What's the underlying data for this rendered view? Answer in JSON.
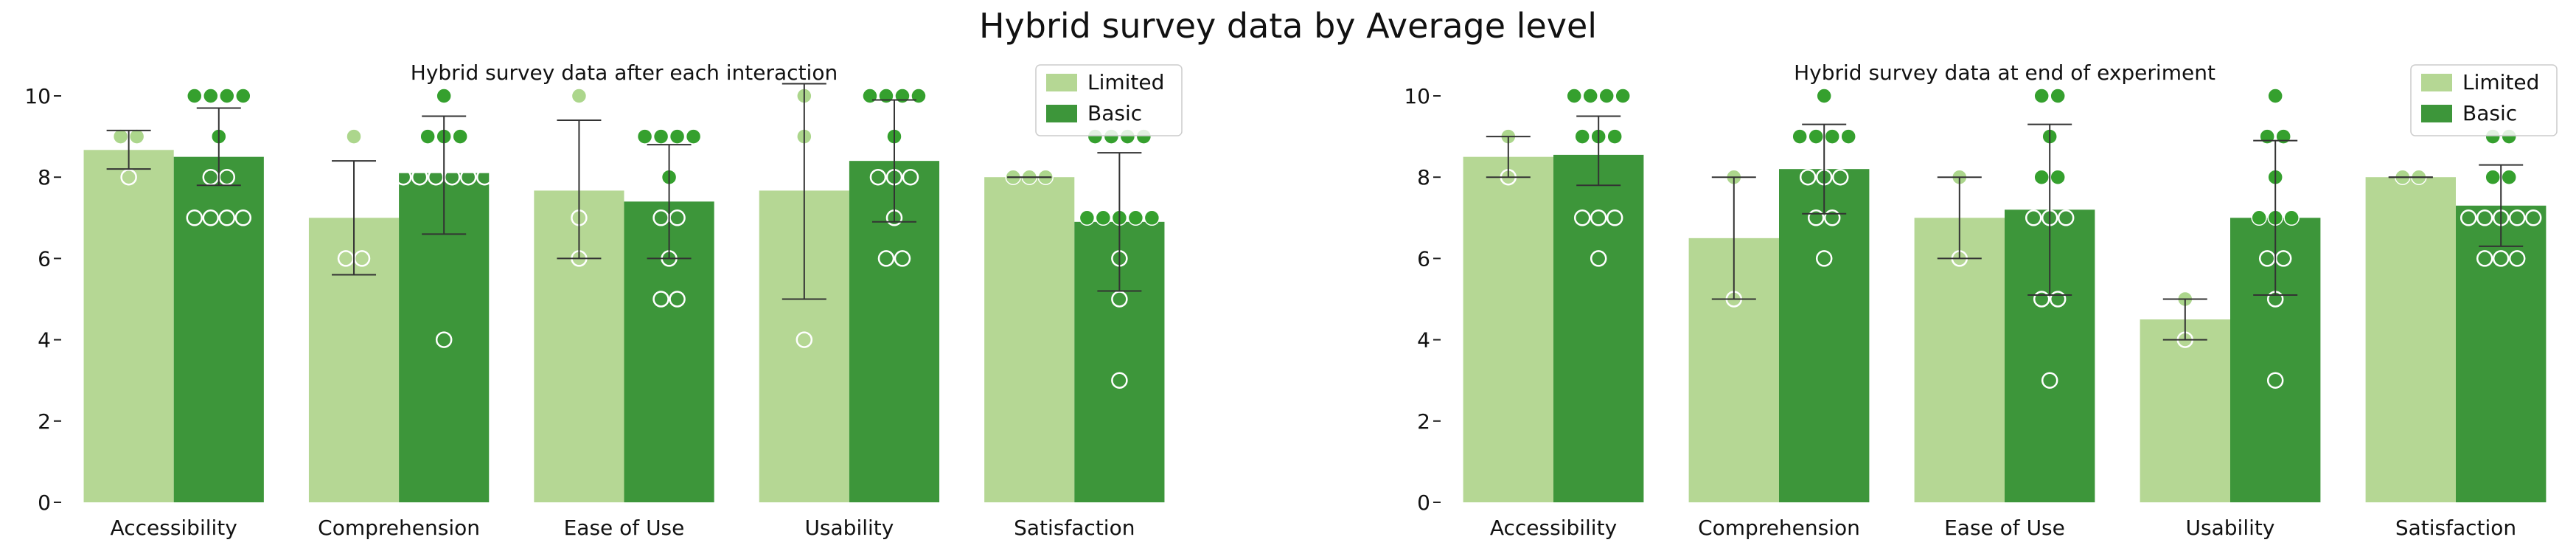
{
  "suptitle": "Hybrid survey data by Average level",
  "colors": {
    "limited_bar": "#b5d794",
    "basic_bar": "#3d963a",
    "limited_point": "#acd68c",
    "basic_point": "#35a02e",
    "error_bar": "#333333"
  },
  "chart_data": [
    {
      "type": "bar",
      "title": "Hybrid survey data after each interaction",
      "categories": [
        "Accessibility",
        "Comprehension",
        "Ease of Use",
        "Usability",
        "Satisfaction"
      ],
      "ylim": [
        0,
        10.3
      ],
      "yticks": [
        "0",
        "2",
        "4",
        "6",
        "8",
        "10"
      ],
      "legend": {
        "position": "top-right",
        "entries": [
          "Limited",
          "Basic"
        ]
      },
      "grid": false,
      "series": [
        {
          "name": "Limited",
          "values": [
            8.67,
            7.0,
            7.67,
            7.67,
            8.0
          ],
          "error": [
            [
              8.2,
              9.15
            ],
            [
              5.6,
              8.4
            ],
            [
              6.0,
              9.4
            ],
            [
              5.0,
              10.3
            ],
            [
              8.0,
              8.0
            ]
          ],
          "points": [
            [
              9,
              9,
              8
            ],
            [
              9,
              6,
              6
            ],
            [
              10,
              7,
              6
            ],
            [
              10,
              9,
              4
            ],
            [
              8,
              8,
              8
            ]
          ]
        },
        {
          "name": "Basic",
          "values": [
            8.5,
            8.1,
            7.4,
            8.4,
            6.9
          ],
          "error": [
            [
              7.8,
              9.7
            ],
            [
              6.6,
              9.5
            ],
            [
              6.0,
              8.8
            ],
            [
              6.9,
              9.9
            ],
            [
              5.2,
              8.6
            ]
          ],
          "points": [
            [
              10,
              10,
              10,
              10,
              9,
              8,
              8,
              7,
              7,
              7,
              7
            ],
            [
              10,
              9,
              9,
              9,
              8,
              8,
              8,
              8,
              8,
              8,
              4
            ],
            [
              9,
              9,
              9,
              9,
              8,
              7,
              7,
              6,
              5,
              5
            ],
            [
              10,
              10,
              10,
              10,
              9,
              8,
              8,
              8,
              7,
              6,
              6
            ],
            [
              9,
              9,
              9,
              9,
              7,
              7,
              7,
              7,
              7,
              6,
              5,
              3
            ]
          ]
        }
      ]
    },
    {
      "type": "bar",
      "title": "Hybrid survey data at end of experiment",
      "categories": [
        "Accessibility",
        "Comprehension",
        "Ease of Use",
        "Usability",
        "Satisfaction"
      ],
      "ylim": [
        0,
        10.3
      ],
      "yticks": [
        "0",
        "2",
        "4",
        "6",
        "8",
        "10"
      ],
      "legend": {
        "position": "top-right",
        "entries": [
          "Limited",
          "Basic"
        ]
      },
      "grid": false,
      "series": [
        {
          "name": "Limited",
          "values": [
            8.5,
            6.5,
            7.0,
            4.5,
            8.0
          ],
          "error": [
            [
              8.0,
              9.0
            ],
            [
              5.0,
              8.0
            ],
            [
              6.0,
              8.0
            ],
            [
              4.0,
              5.0
            ],
            [
              8.0,
              8.0
            ]
          ],
          "points": [
            [
              9,
              8
            ],
            [
              8,
              5
            ],
            [
              8,
              6
            ],
            [
              5,
              4
            ],
            [
              8,
              8
            ]
          ]
        },
        {
          "name": "Basic",
          "values": [
            8.55,
            8.2,
            7.2,
            7.0,
            7.3
          ],
          "error": [
            [
              7.8,
              9.5
            ],
            [
              7.1,
              9.3
            ],
            [
              5.1,
              9.3
            ],
            [
              5.1,
              8.9
            ],
            [
              6.3,
              8.3
            ]
          ],
          "points": [
            [
              10,
              10,
              10,
              10,
              9,
              9,
              9,
              7,
              7,
              7,
              6
            ],
            [
              10,
              9,
              9,
              9,
              9,
              8,
              8,
              8,
              7,
              7,
              6
            ],
            [
              10,
              10,
              9,
              8,
              8,
              7,
              7,
              7,
              5,
              5,
              3
            ],
            [
              10,
              9,
              9,
              8,
              7,
              7,
              7,
              6,
              6,
              5,
              3
            ],
            [
              9,
              9,
              8,
              8,
              7,
              7,
              7,
              7,
              7,
              6,
              6,
              6
            ]
          ]
        }
      ]
    }
  ]
}
